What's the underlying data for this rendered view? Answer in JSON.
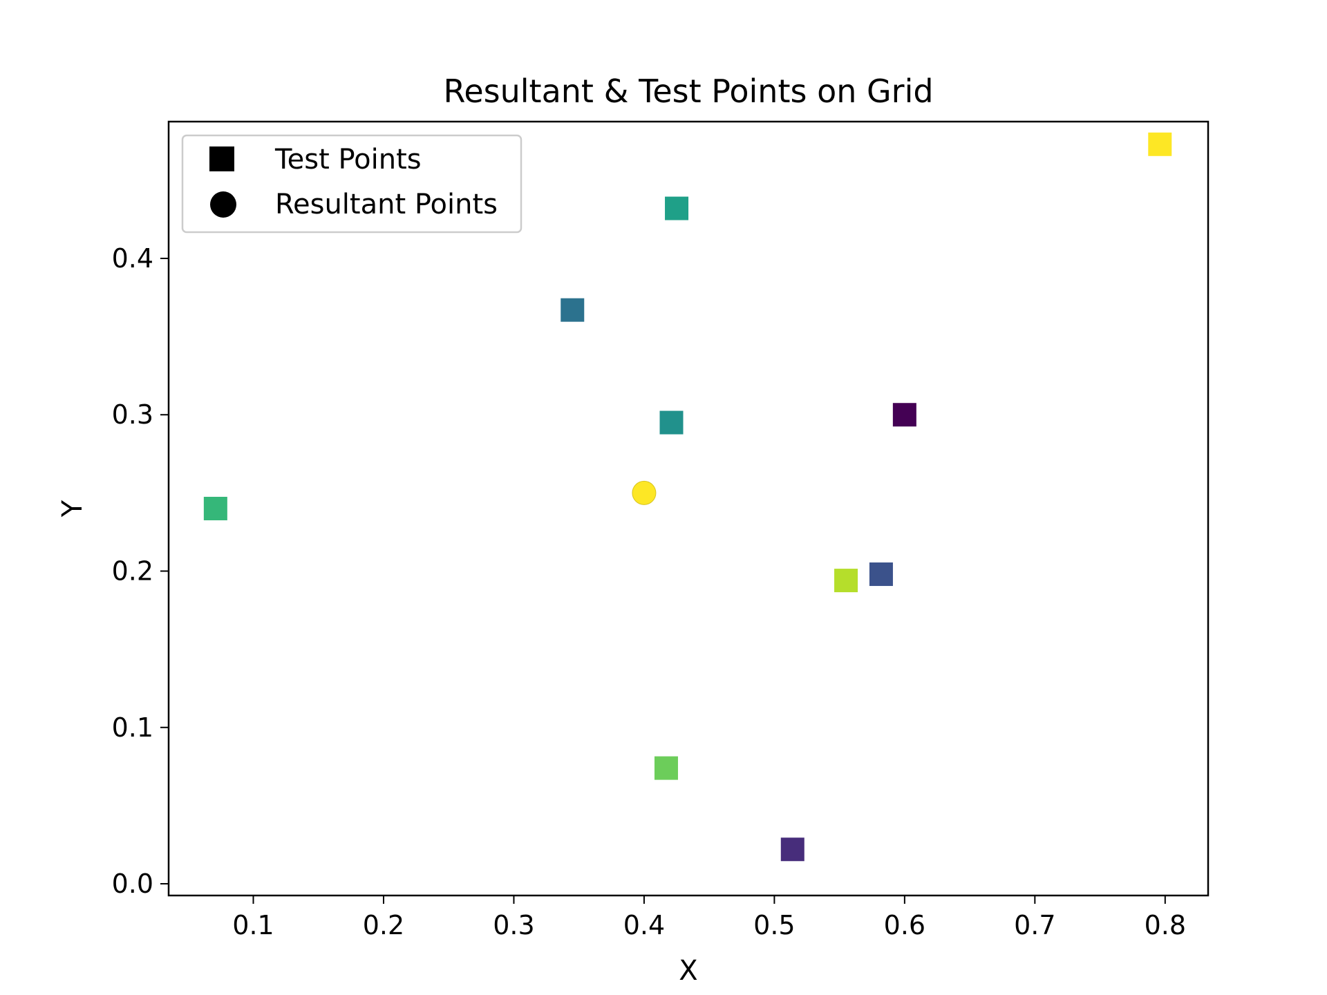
{
  "chart_data": {
    "type": "scatter",
    "title": "Resultant & Test Points on Grid",
    "xlabel": "X",
    "ylabel": "Y",
    "xlim": [
      0.035,
      0.833
    ],
    "ylim": [
      -0.0075,
      0.4875
    ],
    "xticks": [
      "0.1",
      "0.2",
      "0.3",
      "0.4",
      "0.5",
      "0.6",
      "0.7",
      "0.8"
    ],
    "yticks": [
      "0.0",
      "0.1",
      "0.2",
      "0.3",
      "0.4"
    ],
    "grid": false,
    "legend_position": "upper left",
    "legend": [
      {
        "label": "Test Points",
        "marker": "square"
      },
      {
        "label": "Resultant Points",
        "marker": "circle"
      }
    ],
    "series": [
      {
        "marker": "square",
        "points": [
          {
            "x": 0.6,
            "y": 0.3,
            "color": "#440154"
          },
          {
            "x": 0.514,
            "y": 0.022,
            "color": "#472d7b"
          },
          {
            "x": 0.582,
            "y": 0.198,
            "color": "#3b528b"
          },
          {
            "x": 0.345,
            "y": 0.367,
            "color": "#2c728e"
          },
          {
            "x": 0.421,
            "y": 0.295,
            "color": "#21918c"
          },
          {
            "x": 0.425,
            "y": 0.432,
            "color": "#1fa088"
          },
          {
            "x": 0.071,
            "y": 0.24,
            "color": "#35b779"
          },
          {
            "x": 0.417,
            "y": 0.074,
            "color": "#6ccd5a"
          },
          {
            "x": 0.555,
            "y": 0.194,
            "color": "#b5de2b"
          },
          {
            "x": 0.796,
            "y": 0.473,
            "color": "#fde725"
          }
        ]
      },
      {
        "marker": "circle",
        "points": [
          {
            "x": 0.4,
            "y": 0.25,
            "color": "#fde725"
          }
        ]
      }
    ]
  }
}
